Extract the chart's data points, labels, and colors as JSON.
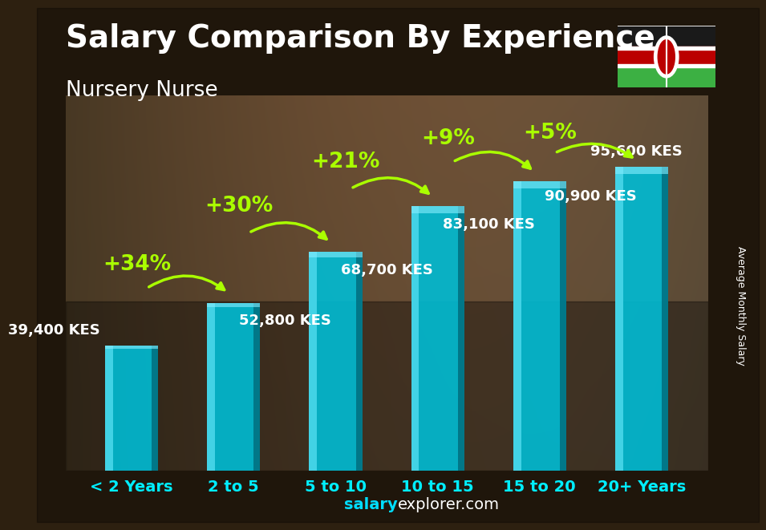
{
  "categories": [
    "< 2 Years",
    "2 to 5",
    "5 to 10",
    "10 to 15",
    "15 to 20",
    "20+ Years"
  ],
  "values": [
    39400,
    52800,
    68700,
    83100,
    90900,
    95600
  ],
  "value_labels": [
    "39,400 KES",
    "52,800 KES",
    "68,700 KES",
    "83,100 KES",
    "90,900 KES",
    "95,600 KES"
  ],
  "pct_labels": [
    "+34%",
    "+30%",
    "+21%",
    "+9%",
    "+5%"
  ],
  "bar_color_main": "#00bcd4",
  "bar_color_light": "#4dd9ec",
  "bar_color_dark": "#0097a7",
  "bar_color_shadow": "#006070",
  "title": "Salary Comparison By Experience",
  "subtitle": "Nursery Nurse",
  "ylabel": "Average Monthly Salary",
  "footer_bold": "salary",
  "footer_normal": "explorer.com",
  "title_fontsize": 28,
  "subtitle_fontsize": 19,
  "label_fontsize": 13,
  "pct_fontsize": 19,
  "cat_fontsize": 14,
  "ylabel_fontsize": 9,
  "footer_fontsize": 14,
  "pct_color": "#aaff00",
  "label_color": "white",
  "cat_color": "#00eeff",
  "bg_color": "#3d2b1a",
  "ylim": [
    0,
    118000
  ],
  "bar_width": 0.52,
  "arrow_color": "#aaff00"
}
